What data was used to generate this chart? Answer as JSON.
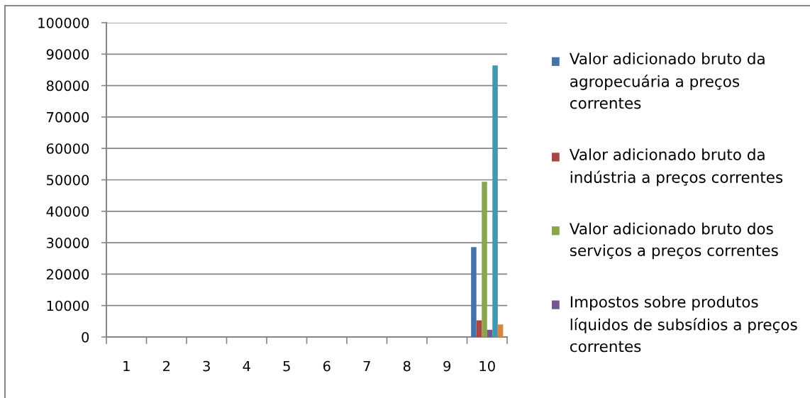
{
  "chart_data": {
    "type": "bar",
    "categories": [
      "1",
      "2",
      "3",
      "4",
      "5",
      "6",
      "7",
      "8",
      "9",
      "10"
    ],
    "series": [
      {
        "name": "Valor adicionado bruto da agropecuária a preços correntes",
        "color": "#4572a7",
        "values": [
          null,
          null,
          null,
          null,
          null,
          null,
          null,
          null,
          null,
          28600
        ]
      },
      {
        "name": "Valor adicionado bruto da indústria a preços correntes",
        "color": "#aa4643",
        "values": [
          null,
          null,
          null,
          null,
          null,
          null,
          null,
          null,
          null,
          5300
        ]
      },
      {
        "name": "Valor adicionado bruto dos serviços a preços correntes",
        "color": "#89a54e",
        "values": [
          null,
          null,
          null,
          null,
          null,
          null,
          null,
          null,
          null,
          49400
        ]
      },
      {
        "name": "Impostos sobre produtos líquidos de subsídios a preços correntes",
        "color": "#71588f",
        "values": [
          null,
          null,
          null,
          null,
          null,
          null,
          null,
          null,
          null,
          2300
        ]
      },
      {
        "color": "#4198af",
        "values": [
          null,
          null,
          null,
          null,
          null,
          null,
          null,
          null,
          null,
          86400
        ]
      },
      {
        "color": "#db843d",
        "values": [
          null,
          null,
          null,
          null,
          null,
          null,
          null,
          null,
          null,
          4000
        ]
      }
    ],
    "ylim": [
      0,
      100000
    ],
    "yticks": [
      0,
      10000,
      20000,
      30000,
      40000,
      50000,
      60000,
      70000,
      80000,
      90000,
      100000
    ],
    "grid": "y",
    "legend": "right"
  }
}
